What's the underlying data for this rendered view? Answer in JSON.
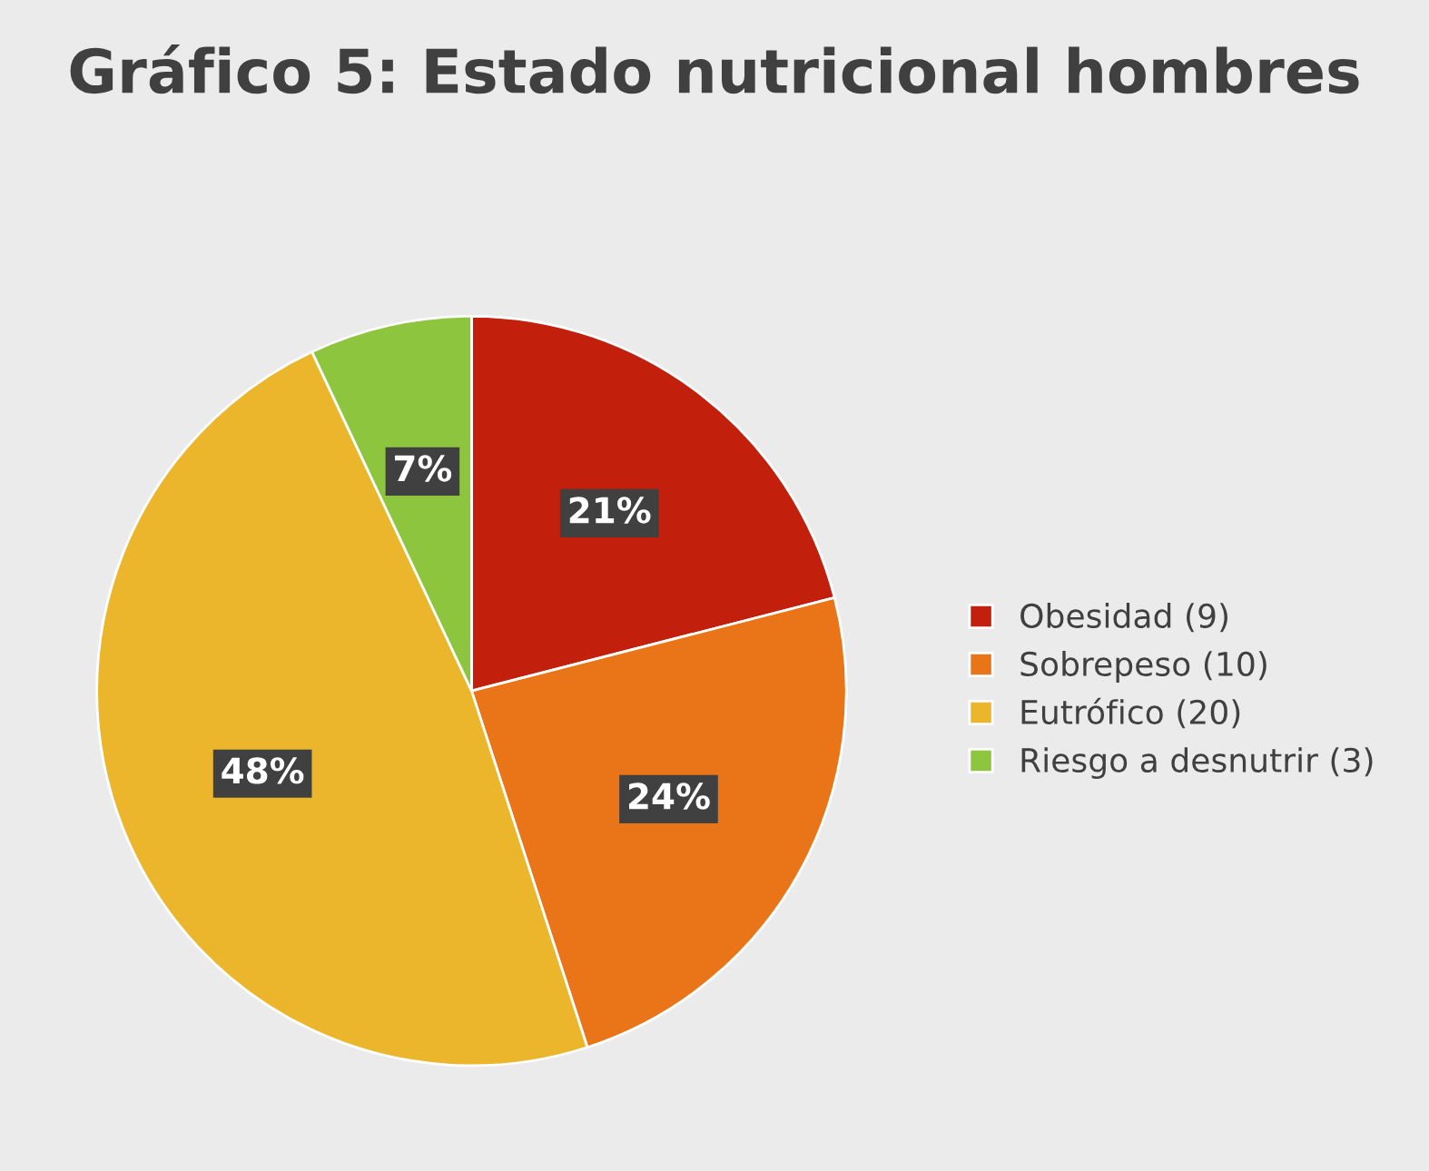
{
  "chart_data": {
    "type": "pie",
    "title": "Gráfico 5: Estado nutricional hombres",
    "categories": [
      "Obesidad (9)",
      "Sobrepeso (10)",
      "Eutrófico (20)",
      "Riesgo a desnutrir (3)"
    ],
    "values": [
      21,
      24,
      48,
      7
    ],
    "colors": [
      "#c21f0c",
      "#ea7418",
      "#ebb62c",
      "#8dc53e"
    ],
    "value_labels": [
      "21%",
      "24%",
      "48%",
      "7%"
    ],
    "legend": "right"
  }
}
